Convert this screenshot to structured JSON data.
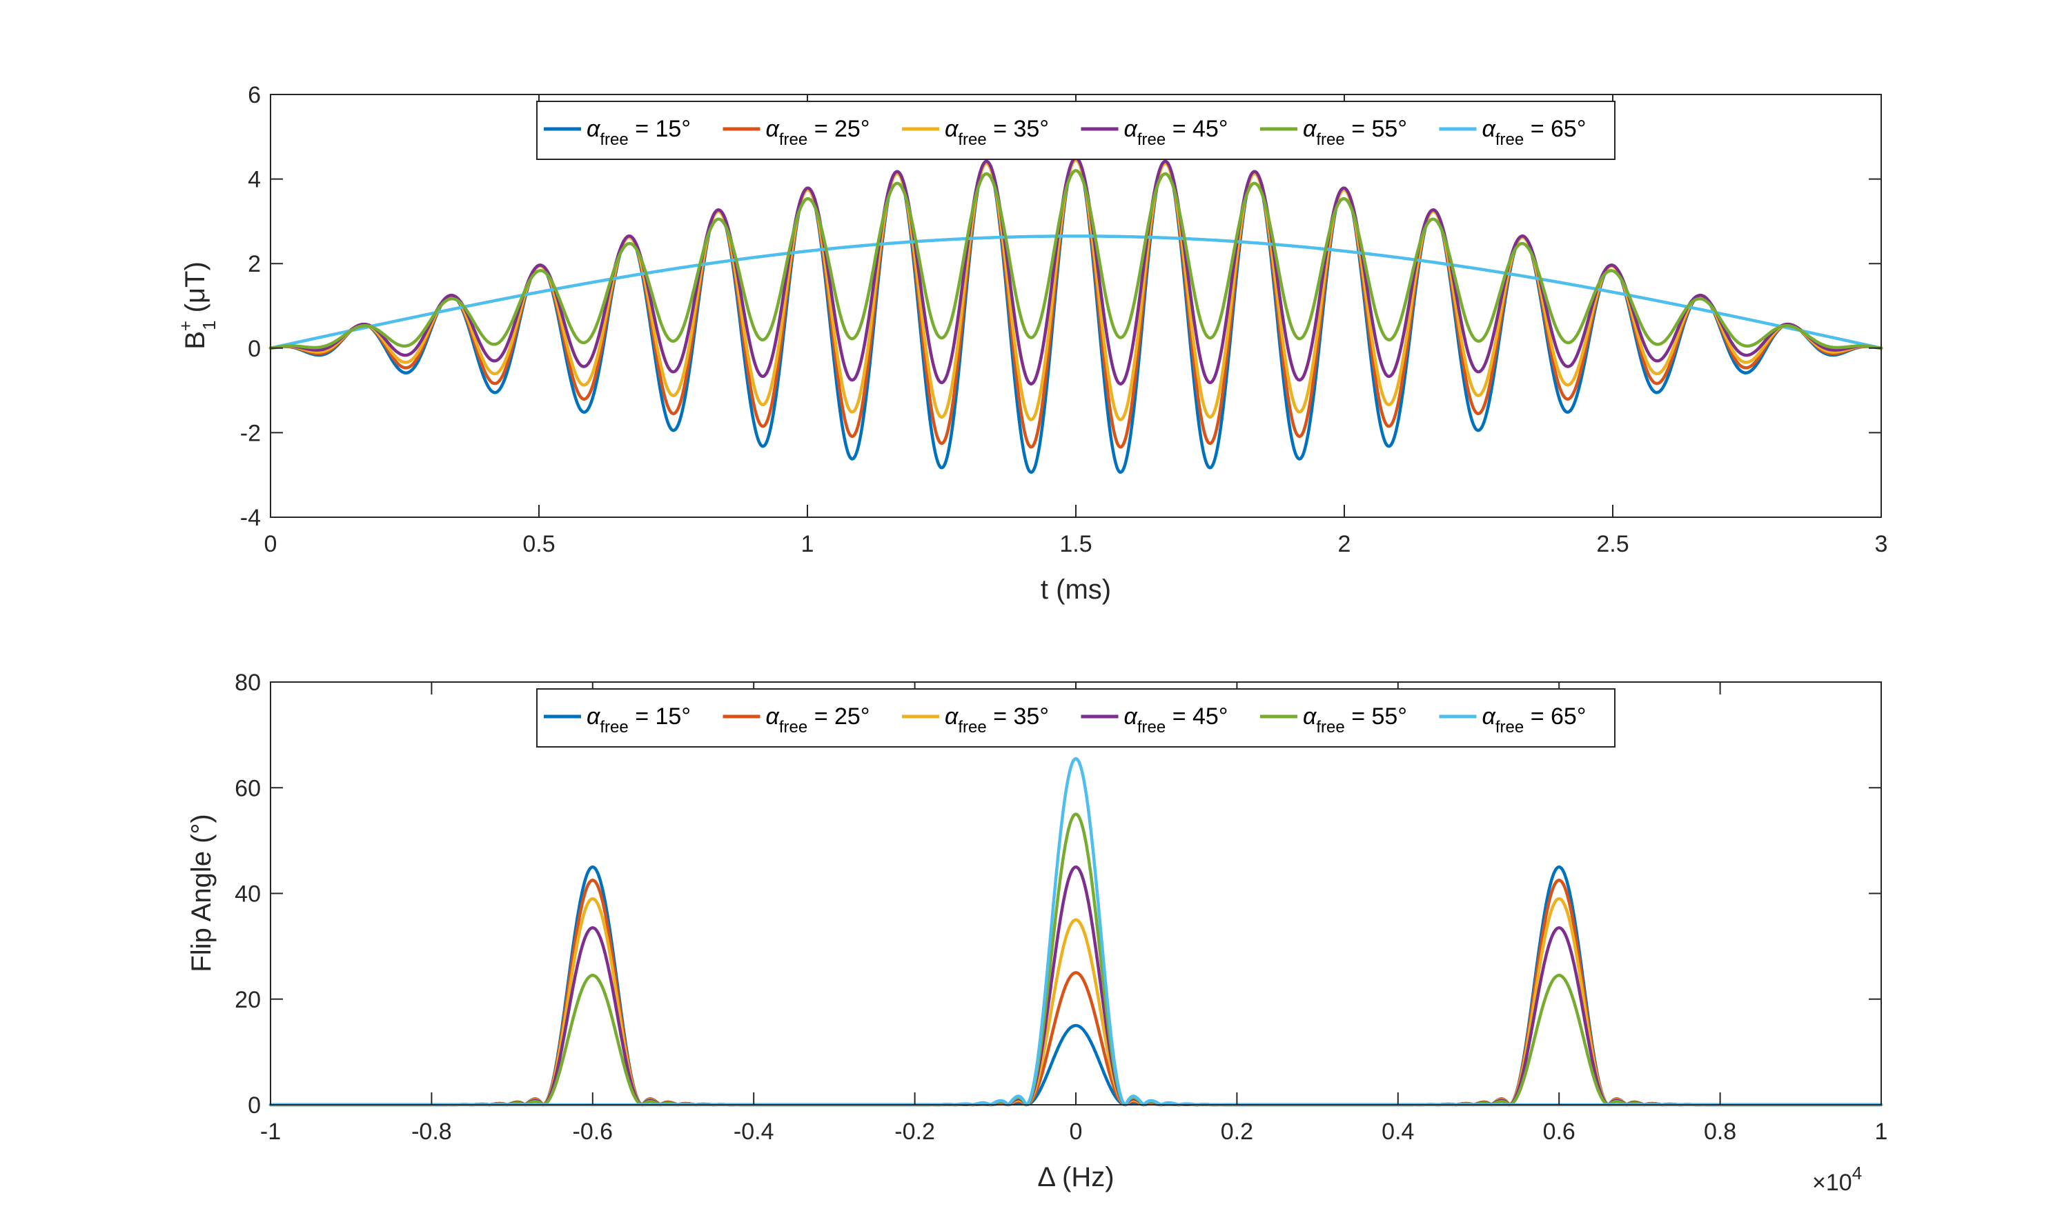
{
  "colors": {
    "s15": "#0072BD",
    "s25": "#D95319",
    "s35": "#EDB120",
    "s45": "#7E2F8E",
    "s55": "#77AC30",
    "s65": "#4DBEEE",
    "axis": "#262626"
  },
  "chart_data": [
    {
      "type": "line",
      "xlabel": "t (ms)",
      "ylabel": {
        "main": "B",
        "sup": "+",
        "sub": "1",
        "unit": " (μT)"
      },
      "xlim": [
        0,
        3
      ],
      "ylim": [
        -4,
        6
      ],
      "xticks": [
        "0",
        "0.5",
        "1",
        "1.5",
        "2",
        "2.5",
        "3"
      ],
      "yticks": [
        "-4",
        "-2",
        "0",
        "2",
        "4",
        "6"
      ],
      "legend_placement": "top-center",
      "grid": false,
      "pulse_model": {
        "period_ms": 0.1667,
        "peak_upper_uT": {
          "15": 4.5,
          "25": 4.5,
          "35": 4.45,
          "45": 4.5,
          "55": 4.2
        },
        "trough_min_uT": {
          "15": -2.95,
          "25": -2.35,
          "35": -1.7,
          "45": -0.85,
          "55": 0.25
        },
        "smooth_peak_uT": {
          "65": 2.65
        }
      },
      "series": [
        {
          "name_main": "α",
          "name_sub": "free",
          "name_rest": " = 15°",
          "key": "15"
        },
        {
          "name_main": "α",
          "name_sub": "free",
          "name_rest": " = 25°",
          "key": "25"
        },
        {
          "name_main": "α",
          "name_sub": "free",
          "name_rest": " = 35°",
          "key": "35"
        },
        {
          "name_main": "α",
          "name_sub": "free",
          "name_rest": " = 45°",
          "key": "45"
        },
        {
          "name_main": "α",
          "name_sub": "free",
          "name_rest": " = 55°",
          "key": "55"
        },
        {
          "name_main": "α",
          "name_sub": "free",
          "name_rest": " = 65°",
          "key": "65"
        }
      ]
    },
    {
      "type": "line",
      "xlabel": "Δ (Hz)",
      "ylabel": "Flip Angle (°)",
      "xlim": [
        -1,
        1
      ],
      "ylim": [
        0,
        80
      ],
      "x_multiplier": {
        "base": "×10",
        "exp": "4"
      },
      "xticks": [
        "-1",
        "-0.8",
        "-0.6",
        "-0.4",
        "-0.2",
        "0",
        "0.2",
        "0.4",
        "0.6",
        "0.8",
        "1"
      ],
      "yticks": [
        "0",
        "20",
        "40",
        "60",
        "80"
      ],
      "legend_placement": "top-center",
      "grid": false,
      "peaks": {
        "center_x": 0,
        "side_x": [
          -0.6,
          0.6
        ],
        "center_deg": {
          "15": 15,
          "25": 25,
          "35": 35,
          "45": 45,
          "55": 55,
          "65": 65.5
        },
        "side_deg": {
          "15": 45,
          "25": 42.5,
          "35": 39,
          "45": 33.5,
          "55": 24.5,
          "65": 0
        }
      },
      "series": [
        {
          "name_main": "α",
          "name_sub": "free",
          "name_rest": " = 15°",
          "key": "15"
        },
        {
          "name_main": "α",
          "name_sub": "free",
          "name_rest": " = 25°",
          "key": "25"
        },
        {
          "name_main": "α",
          "name_sub": "free",
          "name_rest": " = 35°",
          "key": "35"
        },
        {
          "name_main": "α",
          "name_sub": "free",
          "name_rest": " = 45°",
          "key": "45"
        },
        {
          "name_main": "α",
          "name_sub": "free",
          "name_rest": " = 55°",
          "key": "55"
        },
        {
          "name_main": "α",
          "name_sub": "free",
          "name_rest": " = 65°",
          "key": "65"
        }
      ]
    }
  ]
}
